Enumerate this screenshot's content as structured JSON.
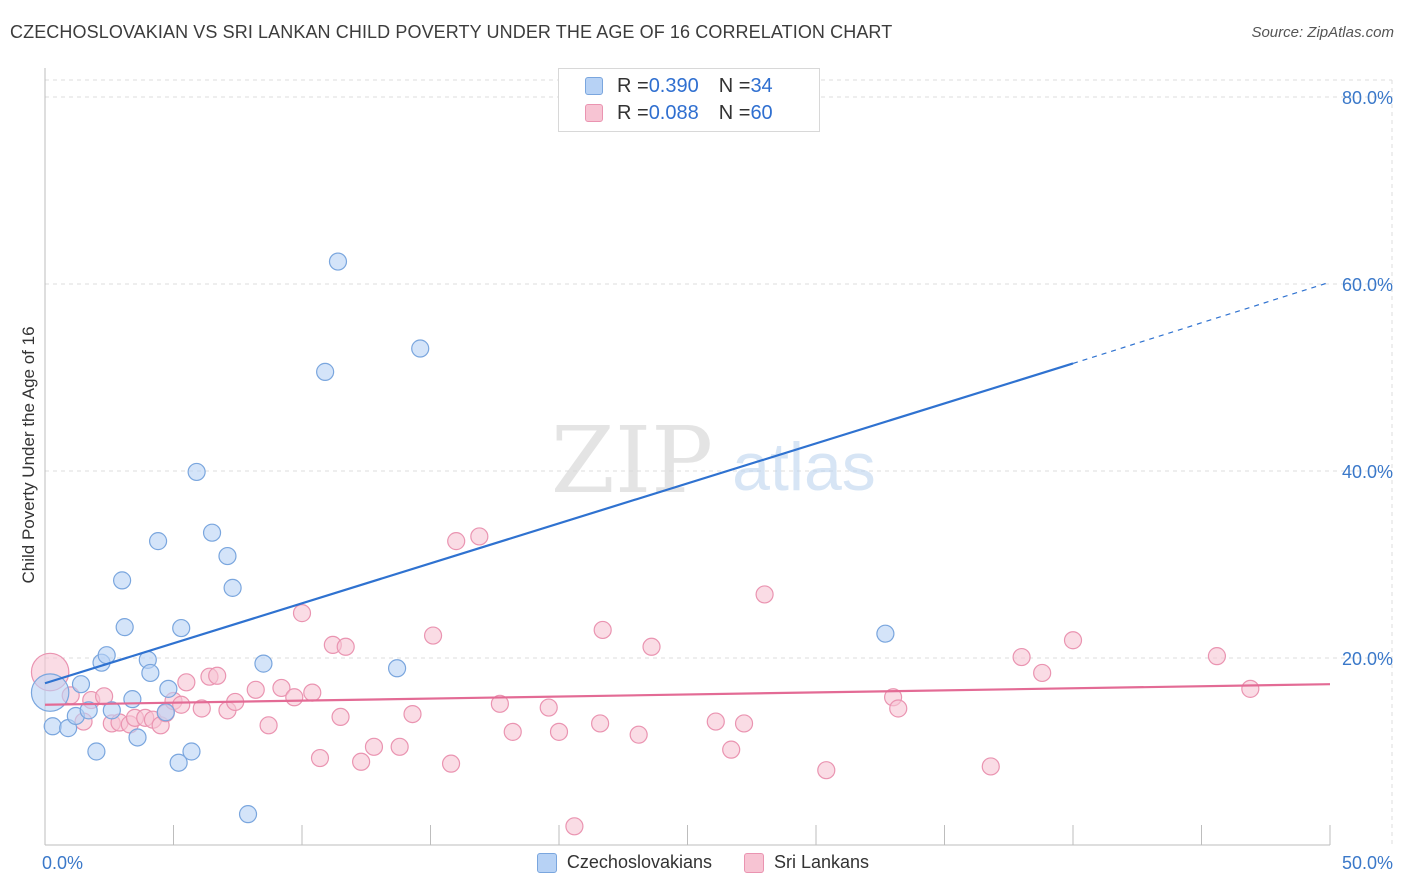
{
  "title": "CZECHOSLOVAKIAN VS SRI LANKAN CHILD POVERTY UNDER THE AGE OF 16 CORRELATION CHART",
  "source": "Source: ZipAtlas.com",
  "watermark": {
    "zip": "ZIP",
    "atlas": "atlas"
  },
  "legend": {
    "czech": {
      "r_label": "R = ",
      "r_value": "0.390",
      "n_label": "N = ",
      "n_value": "34"
    },
    "srilankan": {
      "r_label": "R = ",
      "r_value": "0.088",
      "n_label": "N = ",
      "n_value": "60"
    }
  },
  "colors": {
    "czech_fill": "#b7d2f5",
    "czech_stroke": "#7aa6de",
    "czech_line": "#2f72d0",
    "sri_fill": "#f7c4d3",
    "sri_stroke": "#ea94b1",
    "sri_line": "#e36b95",
    "grid": "#dcdcdc",
    "axis_label": "#3a78c9"
  },
  "chart_data": {
    "type": "scatter",
    "title": "CZECHOSLOVAKIAN VS SRI LANKAN CHILD POVERTY UNDER THE AGE OF 16 CORRELATION CHART",
    "xlabel": "",
    "ylabel": "Child Poverty Under the Age of 16",
    "xlim": [
      0,
      50
    ],
    "ylim": [
      0,
      80
    ],
    "x_ticks": [
      0,
      5,
      10,
      15,
      20,
      25,
      30,
      35,
      40,
      45,
      50
    ],
    "x_tick_labels": [
      "0.0%",
      "50.0%"
    ],
    "y_ticks": [
      20,
      40,
      60,
      80
    ],
    "y_tick_labels": [
      "20.0%",
      "40.0%",
      "60.0%",
      "80.0%"
    ],
    "grid": true,
    "legend_position": "top-center",
    "series": [
      {
        "name": "Czechoslovakians",
        "r": 0.39,
        "n": 34,
        "trend": {
          "x0": 0,
          "y0": 17.3,
          "x1": 40,
          "y1": 51.5,
          "dashed_to_x": 50,
          "dashed_to_y": 60.2
        },
        "points": [
          [
            0.2,
            16.3,
            2.2
          ],
          [
            0.3,
            12.7,
            1
          ],
          [
            0.9,
            12.5,
            1
          ],
          [
            1.2,
            13.8,
            1
          ],
          [
            1.4,
            17.2,
            1
          ],
          [
            1.7,
            14.4,
            1
          ],
          [
            2.0,
            10.0,
            1
          ],
          [
            2.2,
            19.5,
            1
          ],
          [
            2.4,
            20.3,
            1
          ],
          [
            2.6,
            14.4,
            1
          ],
          [
            3.0,
            28.3,
            1
          ],
          [
            3.1,
            23.3,
            1
          ],
          [
            3.4,
            15.6,
            1
          ],
          [
            3.6,
            11.5,
            1
          ],
          [
            4.0,
            19.8,
            1
          ],
          [
            4.1,
            18.4,
            1
          ],
          [
            4.4,
            32.5,
            1
          ],
          [
            4.7,
            14.2,
            1
          ],
          [
            4.8,
            16.7,
            1
          ],
          [
            5.2,
            8.8,
            1
          ],
          [
            5.3,
            23.2,
            1
          ],
          [
            5.7,
            10.0,
            1
          ],
          [
            5.9,
            39.9,
            1
          ],
          [
            6.5,
            33.4,
            1
          ],
          [
            7.1,
            30.9,
            1
          ],
          [
            7.3,
            27.5,
            1
          ],
          [
            7.9,
            3.3,
            1
          ],
          [
            8.5,
            19.4,
            1
          ],
          [
            10.9,
            50.6,
            1
          ],
          [
            11.4,
            62.4,
            1
          ],
          [
            13.7,
            18.9,
            1
          ],
          [
            14.6,
            53.1,
            1
          ],
          [
            32.7,
            22.6,
            1
          ]
        ]
      },
      {
        "name": "Sri Lankans",
        "r": 0.088,
        "n": 60,
        "trend": {
          "x0": 0,
          "y0": 15.0,
          "x1": 50,
          "y1": 17.2
        },
        "points": [
          [
            0.2,
            18.5,
            2.2
          ],
          [
            1.0,
            16.0,
            1
          ],
          [
            1.5,
            13.2,
            1
          ],
          [
            1.8,
            15.5,
            1
          ],
          [
            2.3,
            15.9,
            1
          ],
          [
            2.6,
            13.0,
            1
          ],
          [
            2.9,
            13.1,
            1
          ],
          [
            3.3,
            12.9,
            1
          ],
          [
            3.5,
            13.6,
            1
          ],
          [
            3.9,
            13.6,
            1
          ],
          [
            4.2,
            13.4,
            1
          ],
          [
            4.5,
            12.8,
            1
          ],
          [
            4.7,
            14.1,
            1
          ],
          [
            5.0,
            15.4,
            1
          ],
          [
            5.3,
            15.0,
            1
          ],
          [
            5.5,
            17.4,
            1
          ],
          [
            6.1,
            14.6,
            1
          ],
          [
            6.4,
            18.0,
            1
          ],
          [
            6.7,
            18.1,
            1
          ],
          [
            7.1,
            14.4,
            1
          ],
          [
            7.4,
            15.3,
            1
          ],
          [
            8.2,
            16.6,
            1
          ],
          [
            8.7,
            12.8,
            1
          ],
          [
            9.2,
            16.8,
            1
          ],
          [
            9.7,
            15.8,
            1
          ],
          [
            10.0,
            24.8,
            1
          ],
          [
            10.4,
            16.3,
            1
          ],
          [
            10.7,
            9.3,
            1
          ],
          [
            11.2,
            21.4,
            1
          ],
          [
            11.5,
            13.7,
            1
          ],
          [
            11.7,
            21.2,
            1
          ],
          [
            12.3,
            8.9,
            1
          ],
          [
            12.8,
            10.5,
            1
          ],
          [
            13.8,
            10.5,
            1
          ],
          [
            14.3,
            14.0,
            1
          ],
          [
            15.1,
            22.4,
            1
          ],
          [
            15.8,
            8.7,
            1
          ],
          [
            16.0,
            32.5,
            1
          ],
          [
            16.9,
            33.0,
            1
          ],
          [
            17.7,
            15.1,
            1
          ],
          [
            18.2,
            12.1,
            1
          ],
          [
            19.6,
            14.7,
            1
          ],
          [
            20.0,
            12.1,
            1
          ],
          [
            20.6,
            2.0,
            1
          ],
          [
            21.6,
            13.0,
            1
          ],
          [
            21.7,
            23.0,
            1
          ],
          [
            23.1,
            11.8,
            1
          ],
          [
            23.6,
            21.2,
            1
          ],
          [
            26.1,
            13.2,
            1
          ],
          [
            26.7,
            10.2,
            1
          ],
          [
            27.2,
            13.0,
            1
          ],
          [
            28.0,
            26.8,
            1
          ],
          [
            30.4,
            8.0,
            1
          ],
          [
            33.0,
            15.8,
            1
          ],
          [
            33.2,
            14.6,
            1
          ],
          [
            36.8,
            8.4,
            1
          ],
          [
            38.0,
            20.1,
            1
          ],
          [
            38.8,
            18.4,
            1
          ],
          [
            40.0,
            21.9,
            1
          ],
          [
            45.6,
            20.2,
            1
          ],
          [
            46.9,
            16.7,
            1
          ]
        ]
      }
    ]
  }
}
